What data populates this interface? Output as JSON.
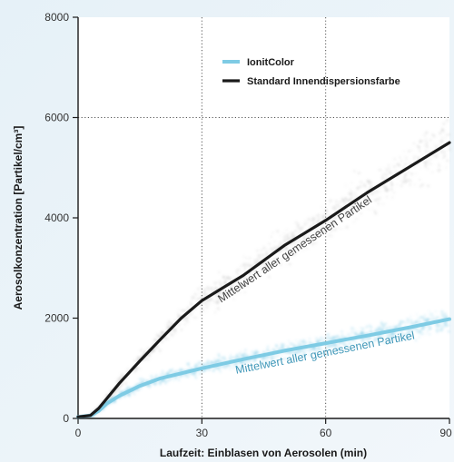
{
  "chart_data": {
    "type": "line",
    "xlabel": "Laufzeit: Einblasen von Aerosolen (min)",
    "ylabel": "Aerosolkonzentration [Partikel/cm³]",
    "xlim": [
      0,
      90
    ],
    "ylim": [
      0,
      8000
    ],
    "x_ticks": [
      0,
      30,
      60,
      90
    ],
    "y_ticks": [
      0,
      2000,
      4000,
      6000,
      8000
    ],
    "grid": "dotted vertical/horizontal lines at 30, 60 and 6000",
    "legend_position": "top-center",
    "series": [
      {
        "name": "IonitColor",
        "color": "#7ecbe4",
        "x": [
          0,
          3,
          5,
          7,
          10,
          15,
          20,
          30,
          40,
          50,
          60,
          70,
          80,
          90
        ],
        "y": [
          30,
          60,
          150,
          300,
          450,
          650,
          800,
          1000,
          1180,
          1350,
          1500,
          1650,
          1810,
          1980
        ]
      },
      {
        "name": "Standard Innendispersionsfarbe",
        "color": "#1a1a1a",
        "x": [
          0,
          3,
          5,
          7,
          10,
          15,
          20,
          25,
          30,
          40,
          50,
          60,
          70,
          80,
          90
        ],
        "y": [
          30,
          60,
          200,
          400,
          700,
          1150,
          1580,
          2000,
          2350,
          2850,
          3450,
          3950,
          4500,
          5000,
          5500
        ]
      }
    ],
    "annotations": [
      {
        "text": "Mittelwert aller gemessenen Partikel",
        "series": "Standard Innendispersionsfarbe",
        "color": "#444444"
      },
      {
        "text": "Mittelwert aller gemessenen Partikel",
        "series": "IonitColor",
        "color": "#3f97b8"
      }
    ]
  }
}
